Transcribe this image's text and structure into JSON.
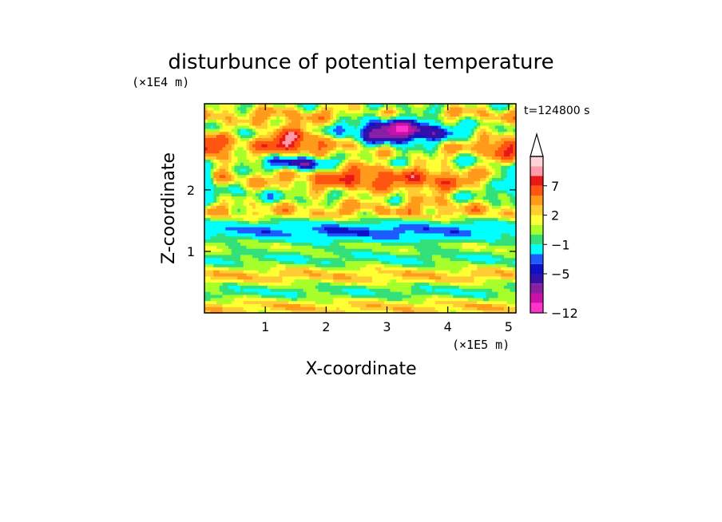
{
  "chart_data": {
    "type": "heatmap",
    "title": "disturbunce of potential temperature",
    "xlabel": "X-coordinate",
    "ylabel": "Z-coordinate",
    "x_unit": "(×1E5 m)",
    "y_unit": "(×1E4 m)",
    "time_label": "t=124800 s",
    "xlim": [
      0,
      5.12
    ],
    "ylim": [
      0,
      3.4
    ],
    "x_ticks": [
      1,
      2,
      3,
      4,
      5
    ],
    "y_ticks": [
      1,
      2
    ],
    "colorbar": {
      "levels": [
        -12,
        -11,
        -9,
        -7,
        -5,
        -4,
        -3,
        -1,
        0,
        1,
        2,
        3,
        5,
        7,
        8,
        9
      ],
      "colors": [
        "#ff33cc",
        "#cc11aa",
        "#8a1fa6",
        "#3311aa",
        "#0c12c8",
        "#1f5aff",
        "#00ffff",
        "#33e07a",
        "#a6ff2a",
        "#ffff33",
        "#ffcc33",
        "#ff9a1a",
        "#ff5511",
        "#e81818",
        "#ff9aa8",
        "#ffd2d8"
      ],
      "labels": [
        {
          "value": -12,
          "text": "−12"
        },
        {
          "value": -5,
          "text": "−5"
        },
        {
          "value": -1,
          "text": "−1"
        },
        {
          "value": 2,
          "text": "2"
        },
        {
          "value": 7,
          "text": "7"
        }
      ],
      "extend": "max"
    }
  }
}
